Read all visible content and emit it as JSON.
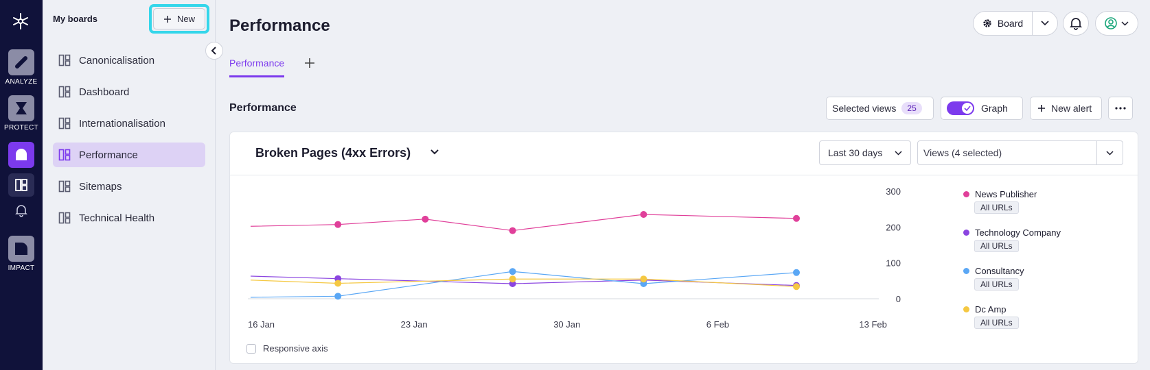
{
  "rail": {
    "items": [
      {
        "label": "ANALYZE",
        "icon": "analyze-icon"
      },
      {
        "label": "PROTECT",
        "icon": "protect-icon"
      },
      {
        "label": "",
        "icon": "monitor-icon"
      },
      {
        "label": "",
        "icon": "boards-icon"
      },
      {
        "label": "",
        "icon": "bell-icon"
      },
      {
        "label": "IMPACT",
        "icon": "impact-icon"
      }
    ]
  },
  "sidebar": {
    "title": "My boards",
    "new_label": "New",
    "items": [
      {
        "label": "Canonicalisation"
      },
      {
        "label": "Dashboard"
      },
      {
        "label": "Internationalisation"
      },
      {
        "label": "Performance"
      },
      {
        "label": "Sitemaps"
      },
      {
        "label": "Technical Health"
      }
    ],
    "active_index": 3
  },
  "header": {
    "title": "Performance",
    "board_label": "Board"
  },
  "tabs": [
    {
      "label": "Performance"
    }
  ],
  "section": {
    "title": "Performance",
    "selected_views_label": "Selected views",
    "selected_views_count": "25",
    "graph_label": "Graph",
    "graph_on": true,
    "new_alert_label": "New alert"
  },
  "card": {
    "metric_title": "Broken Pages (4xx Errors)",
    "range_label": "Last 30 days",
    "views_label": "Views (4 selected)",
    "responsive_axis_label": "Responsive axis"
  },
  "colors": {
    "accent": "#7c3aed",
    "highlight": "#34d6ea",
    "rail_bg": "#10123a"
  },
  "chart_data": {
    "type": "line",
    "x_ticks": [
      "16 Jan",
      "23 Jan",
      "30 Jan",
      "6 Feb",
      "13 Feb"
    ],
    "y_ticks": [
      "0",
      "100",
      "200",
      "300"
    ],
    "ylim": [
      0,
      300
    ],
    "grid": false,
    "legend": "right",
    "series": [
      {
        "name": "News Publisher",
        "tag": "All URLs",
        "color": "#e0409a",
        "points": [
          [
            "16 Jan",
            202
          ],
          [
            "20 Jan",
            207
          ],
          [
            "24 Jan",
            222
          ],
          [
            "28 Jan",
            190
          ],
          [
            "3 Feb",
            235
          ],
          [
            "10 Feb",
            224
          ]
        ]
      },
      {
        "name": "Technology Company",
        "tag": "All URLs",
        "color": "#8b45e0",
        "points": [
          [
            "16 Jan",
            63
          ],
          [
            "20 Jan",
            56
          ],
          [
            "28 Jan",
            42
          ],
          [
            "3 Feb",
            52
          ],
          [
            "10 Feb",
            37
          ]
        ]
      },
      {
        "name": "Consultancy",
        "tag": "All URLs",
        "color": "#5aa7f5",
        "points": [
          [
            "16 Jan",
            4
          ],
          [
            "20 Jan",
            7
          ],
          [
            "28 Jan",
            76
          ],
          [
            "3 Feb",
            42
          ],
          [
            "10 Feb",
            73
          ]
        ]
      },
      {
        "name": "Dc Amp",
        "tag": "All URLs",
        "color": "#f5c842",
        "points": [
          [
            "16 Jan",
            52
          ],
          [
            "20 Jan",
            43
          ],
          [
            "28 Jan",
            55
          ],
          [
            "3 Feb",
            55
          ],
          [
            "10 Feb",
            34
          ]
        ]
      }
    ]
  }
}
